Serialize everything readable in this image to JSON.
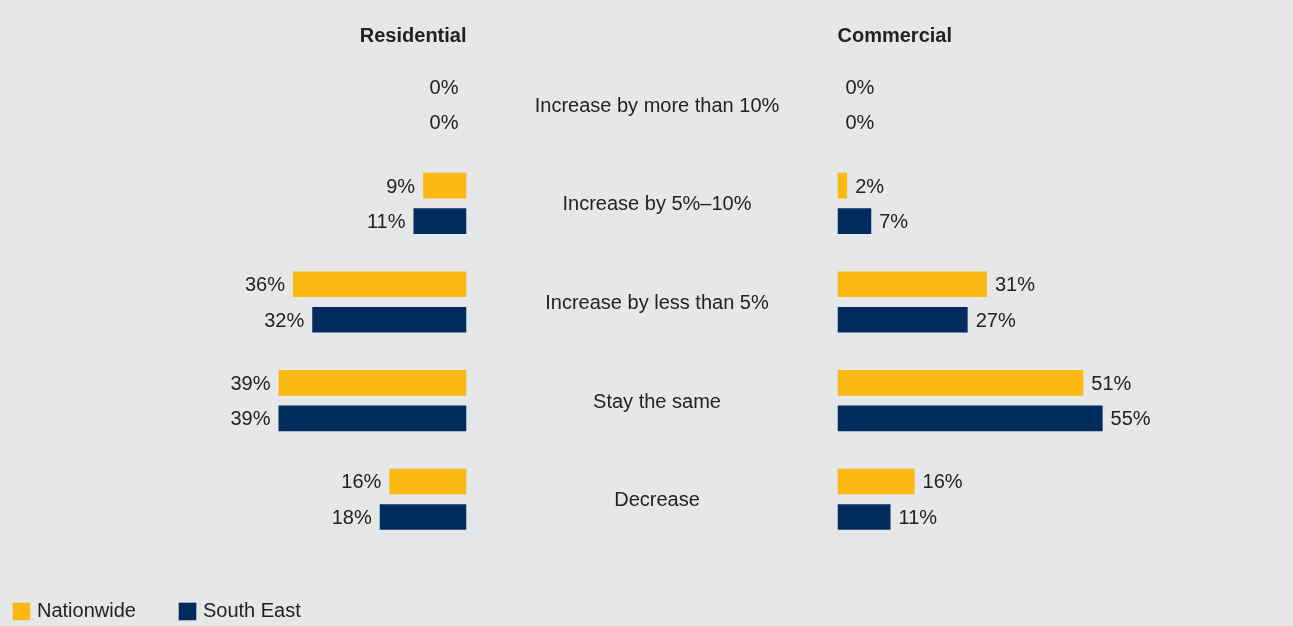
{
  "chart_data": [
    {
      "type": "bar",
      "orientation": "horizontal",
      "title": "Residential",
      "categories": [
        "Increase by more than 10%",
        "Increase by 5%–10%",
        "Increase by less than 5%",
        "Stay the same",
        "Decrease"
      ],
      "series": [
        {
          "name": "Nationwide",
          "color": "#fdb913",
          "values": [
            0,
            9,
            36,
            39,
            16
          ],
          "value_labels": [
            "0%",
            "9%",
            "36%",
            "39%",
            "16%"
          ]
        },
        {
          "name": "South East",
          "color": "#002b5c",
          "values": [
            0,
            11,
            32,
            39,
            18
          ],
          "value_labels": [
            "0%",
            "11%",
            "32%",
            "39%",
            "18%"
          ]
        }
      ],
      "tick_labels": "y",
      "legend": "bottom left"
    },
    {
      "type": "bar",
      "orientation": "horizontal",
      "title": "Commercial",
      "categories": [
        null,
        null,
        null,
        null,
        null
      ],
      "series": [
        {
          "color": "#fdb913",
          "values": [
            0,
            2,
            31,
            51,
            16
          ],
          "value_labels": [
            "0%",
            "2%",
            "31%",
            "51%",
            "16%"
          ]
        },
        {
          "color": "#002b5c",
          "values": [
            0,
            7,
            27,
            55,
            11
          ],
          "value_labels": [
            "0%",
            "7%",
            "27%",
            "55%",
            "11%"
          ]
        }
      ],
      "tick_labels": false
    }
  ]
}
